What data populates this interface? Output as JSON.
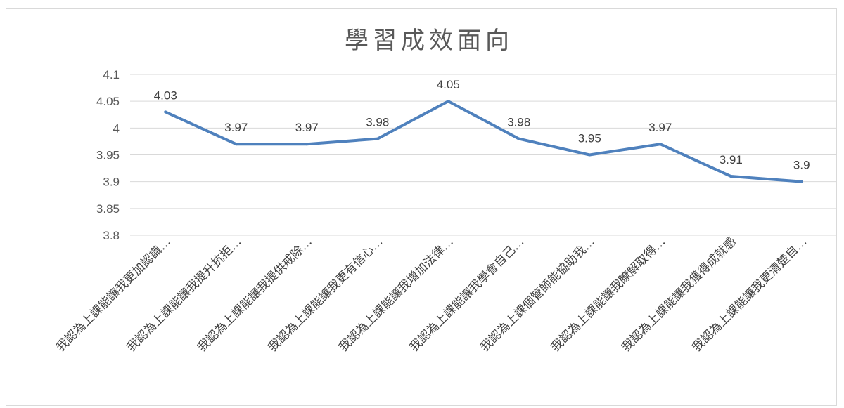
{
  "chart_data": {
    "type": "line",
    "title": "學習成效面向",
    "categories": [
      "我認為上課能讓我更加認識…",
      "我認為上課能讓我提升抗拒…",
      "我認為上課能讓我提供戒除…",
      "我認為上課能讓我更有信心…",
      "我認為上課能讓我增加法律…",
      "我認為上課能讓我學會自己…",
      "我認為上課個管師能協助我…",
      "我認為上課能讓我瞭解取得…",
      "我認為上課能讓我獲得成就感",
      "我認為上課能讓我更清楚自…"
    ],
    "series": [
      {
        "values": [
          4.03,
          3.97,
          3.97,
          3.98,
          4.05,
          3.98,
          3.95,
          3.97,
          3.91,
          3.9
        ],
        "labels": [
          "4.03",
          "3.97",
          "3.97",
          "3.98",
          "4.05",
          "3.98",
          "3.95",
          "3.97",
          "3.91",
          "3.9"
        ],
        "color": "#4f81bd"
      }
    ],
    "ylim": [
      3.8,
      4.1
    ],
    "yticks": [
      "4.1",
      "4.05",
      "4",
      "3.95",
      "3.9",
      "3.85",
      "3.8"
    ],
    "grid": true,
    "legend": "none"
  }
}
